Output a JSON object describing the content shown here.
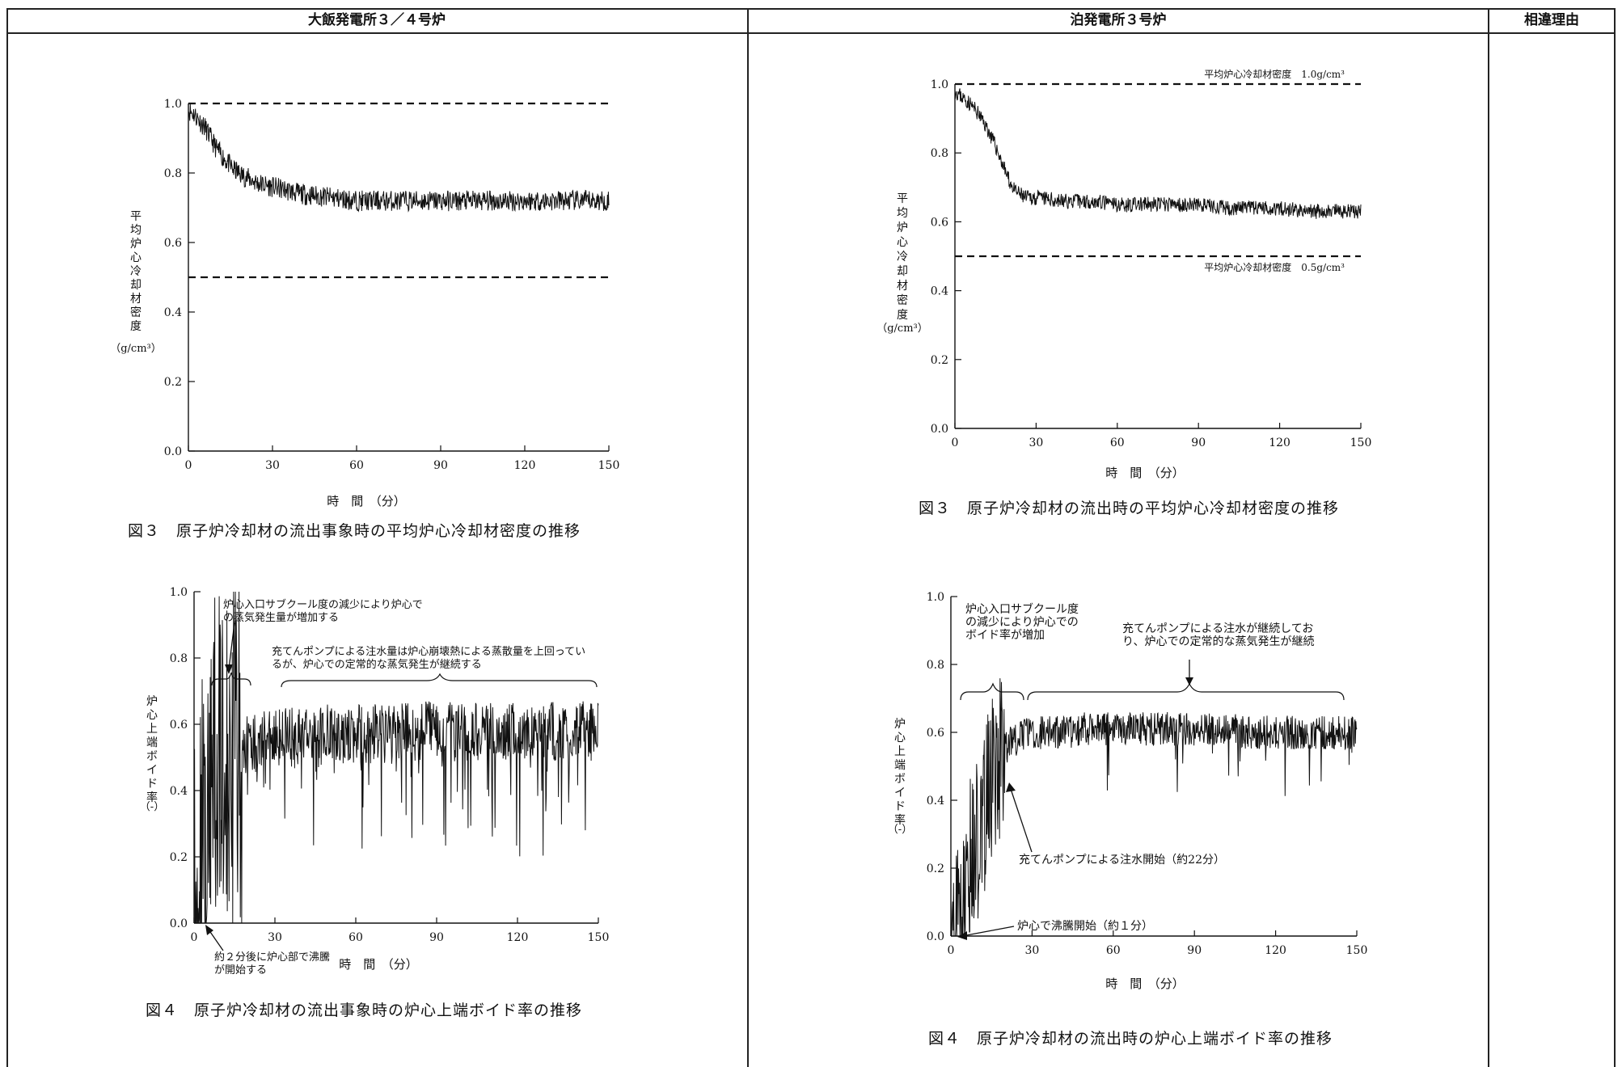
{
  "top_strip_text": "",
  "headers": {
    "left": "大飯発電所３／４号炉",
    "middle": "泊発電所３号炉",
    "right": "相違理由"
  },
  "captions": {
    "left_fig3": "図３　原子炉冷却材の流出事象時の平均炉心冷却材密度の推移",
    "right_fig3": "図３　原子炉冷却材の流出時の平均炉心冷却材密度の推移",
    "left_fig4": "図４　原子炉冷却材の流出事象時の炉心上端ボイド率の推移",
    "right_fig4": "図４　原子炉冷却材の流出時の炉心上端ボイド率の推移"
  },
  "colors": {
    "line": "#111111",
    "border": "#222222",
    "background": "#ffffff"
  },
  "chart_data": [
    {
      "id": "ohi-fig3",
      "type": "line",
      "title": "図３　原子炉冷却材の流出事象時の平均炉心冷却材密度の推移",
      "xlabel": "時　間　（分）",
      "ylabel_chars": [
        "平",
        "均",
        "炉",
        "心",
        "冷",
        "却",
        "材",
        "密",
        "度"
      ],
      "ylabel_unit": "（g/cm³）",
      "xlim": [
        0,
        150
      ],
      "ylim": [
        0.0,
        1.0
      ],
      "xticks": [
        0,
        30,
        60,
        90,
        120,
        150
      ],
      "yticks": [
        "0.0",
        "0.2",
        "0.4",
        "0.6",
        "0.8",
        "1.0"
      ],
      "reference_lines": [
        {
          "y": 1.0,
          "label": ""
        },
        {
          "y": 0.5,
          "label": ""
        }
      ],
      "series": [
        {
          "x": [
            0,
            2,
            4,
            6,
            8,
            10,
            12,
            14,
            16,
            18,
            20,
            25,
            30,
            40,
            50,
            60,
            70,
            80,
            90,
            100,
            110,
            120,
            130,
            140,
            150
          ],
          "y": [
            0.98,
            0.97,
            0.95,
            0.93,
            0.9,
            0.87,
            0.85,
            0.83,
            0.81,
            0.8,
            0.79,
            0.77,
            0.76,
            0.74,
            0.73,
            0.72,
            0.72,
            0.72,
            0.72,
            0.72,
            0.72,
            0.72,
            0.72,
            0.72,
            0.72
          ],
          "noise": 0.03
        }
      ],
      "annotations": []
    },
    {
      "id": "tomari-fig3",
      "type": "line",
      "title": "図３　原子炉冷却材の流出時の平均炉心冷却材密度の推移",
      "xlabel": "時　間　（分）",
      "ylabel_chars": [
        "平",
        "均",
        "炉",
        "心",
        "冷",
        "却",
        "材",
        "密",
        "度"
      ],
      "ylabel_unit": "（g/cm³）",
      "xlim": [
        0,
        150
      ],
      "ylim": [
        0.0,
        1.0
      ],
      "xticks": [
        0,
        30,
        60,
        90,
        120,
        150
      ],
      "yticks": [
        "0.0",
        "0.2",
        "0.4",
        "0.6",
        "0.8",
        "1.0"
      ],
      "reference_lines": [
        {
          "y": 1.0,
          "label": "平均炉心冷却材密度　1.0g/cm³"
        },
        {
          "y": 0.5,
          "label": "平均炉心冷却材密度　0.5g/cm³"
        }
      ],
      "series": [
        {
          "x": [
            0,
            3,
            6,
            9,
            12,
            15,
            18,
            20,
            22,
            24,
            26,
            30,
            40,
            50,
            60,
            70,
            80,
            90,
            100,
            110,
            120,
            130,
            140,
            150
          ],
          "y": [
            0.98,
            0.96,
            0.94,
            0.91,
            0.87,
            0.82,
            0.76,
            0.72,
            0.69,
            0.68,
            0.67,
            0.67,
            0.66,
            0.66,
            0.65,
            0.65,
            0.65,
            0.65,
            0.64,
            0.64,
            0.64,
            0.63,
            0.63,
            0.63
          ],
          "noise": 0.022
        }
      ],
      "annotations": []
    },
    {
      "id": "ohi-fig4",
      "type": "line",
      "title": "図４　原子炉冷却材の流出事象時の炉心上端ボイド率の推移",
      "xlabel": "時　間　（分）",
      "ylabel_chars": [
        "炉",
        "心",
        "上",
        "端",
        "ボ",
        "イ",
        "ド",
        "率"
      ],
      "ylabel_unit": "（-）",
      "xlim": [
        0,
        150
      ],
      "ylim": [
        0.0,
        1.0
      ],
      "xticks": [
        0,
        30,
        60,
        90,
        120,
        150
      ],
      "yticks": [
        "0.0",
        "0.2",
        "0.4",
        "0.6",
        "0.8",
        "1.0"
      ],
      "reference_lines": [],
      "series": [
        {
          "x": [
            0,
            2,
            4,
            6,
            8,
            10,
            12,
            14,
            16,
            18,
            20,
            25,
            30,
            40,
            50,
            60,
            70,
            80,
            90,
            100,
            110,
            120,
            130,
            140,
            150
          ],
          "y": [
            0.0,
            0.1,
            0.3,
            0.4,
            0.45,
            0.5,
            0.5,
            0.52,
            0.53,
            0.53,
            0.54,
            0.55,
            0.56,
            0.56,
            0.57,
            0.57,
            0.57,
            0.58,
            0.58,
            0.58,
            0.58,
            0.58,
            0.58,
            0.58,
            0.58
          ],
          "noise": 0.09
        }
      ],
      "annotations": [
        {
          "lines": [
            "炉心入口サブクール度の減少により炉心で",
            "の蒸気発生量が増加する"
          ]
        },
        {
          "lines": [
            "充てんポンプによる注水量は炉心崩壊熱による蒸散量を上回ってい",
            "るが、炉心での定常的な蒸気発生が継続する"
          ]
        },
        {
          "lines": [
            "約２分後に炉心部で沸騰",
            "が開始する"
          ]
        }
      ]
    },
    {
      "id": "tomari-fig4",
      "type": "line",
      "title": "図４　原子炉冷却材の流出時の炉心上端ボイド率の推移",
      "xlabel": "時　間　（分）",
      "ylabel_chars": [
        "炉",
        "心",
        "上",
        "端",
        "ボ",
        "イ",
        "ド",
        "率"
      ],
      "ylabel_unit": "（-）",
      "xlim": [
        0,
        150
      ],
      "ylim": [
        0.0,
        1.0
      ],
      "xticks": [
        0,
        30,
        60,
        90,
        120,
        150
      ],
      "yticks": [
        "0.0",
        "0.2",
        "0.4",
        "0.6",
        "0.8",
        "1.0"
      ],
      "reference_lines": [],
      "series": [
        {
          "x": [
            0,
            2,
            4,
            6,
            8,
            10,
            12,
            14,
            16,
            18,
            20,
            22,
            25,
            30,
            40,
            50,
            60,
            70,
            80,
            90,
            100,
            110,
            120,
            130,
            140,
            150
          ],
          "y": [
            0.0,
            0.05,
            0.12,
            0.18,
            0.24,
            0.3,
            0.36,
            0.42,
            0.48,
            0.52,
            0.55,
            0.57,
            0.58,
            0.6,
            0.6,
            0.61,
            0.61,
            0.61,
            0.61,
            0.61,
            0.61,
            0.6,
            0.6,
            0.6,
            0.6,
            0.6
          ],
          "noise": 0.05
        }
      ],
      "annotations": [
        {
          "lines": [
            "炉心入口サブクール度",
            "の減少により炉心での",
            "ボイド率が増加"
          ]
        },
        {
          "lines": [
            "充てんポンプによる注水が継続してお",
            "り、炉心での定常的な蒸気発生が継続"
          ]
        },
        {
          "lines": [
            "充てんポンプによる注水開始（約22分）"
          ]
        },
        {
          "lines": [
            "炉心で沸騰開始（約１分）"
          ]
        }
      ]
    }
  ]
}
